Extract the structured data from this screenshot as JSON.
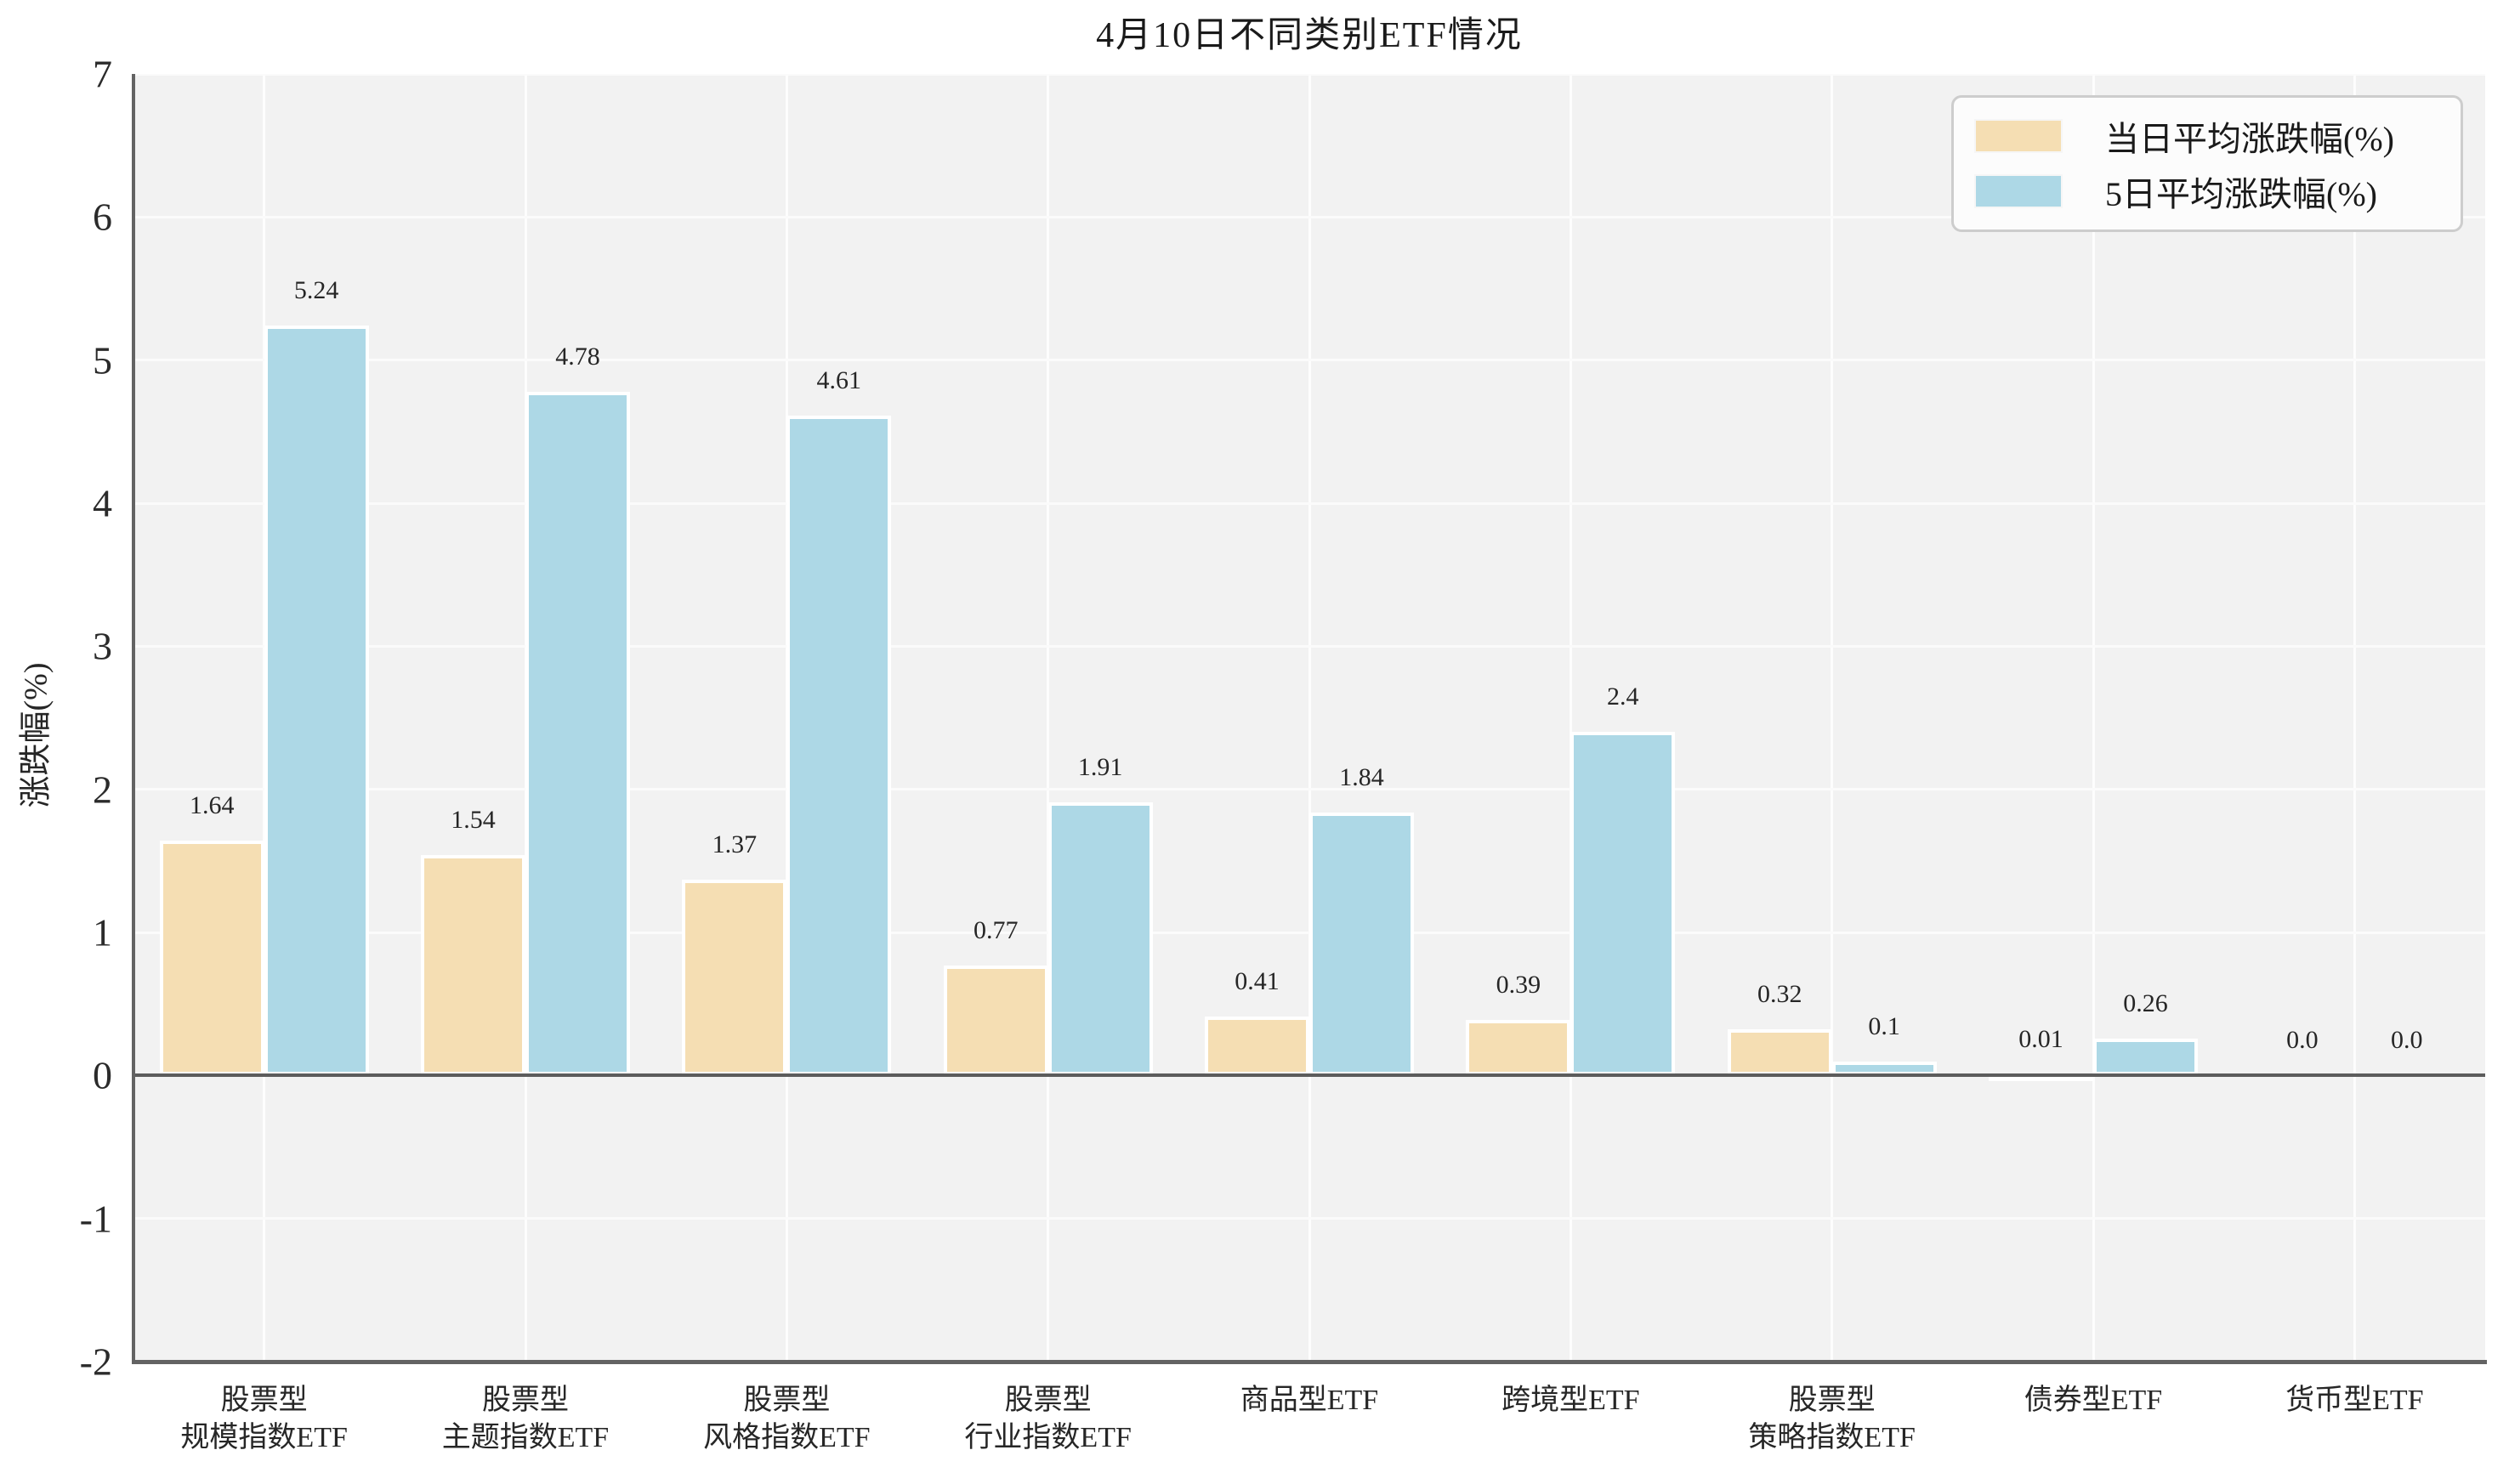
{
  "chart_data": {
    "type": "bar",
    "title": "4月10日不同类别ETF情况",
    "ylabel": "涨跌幅(%)",
    "xlabel": "",
    "ylim": [
      -2,
      7
    ],
    "yticks": [
      -2,
      -1,
      0,
      1,
      2,
      3,
      4,
      5,
      6,
      7
    ],
    "grid": true,
    "legend_position": "upper right",
    "categories": [
      [
        "股票型",
        "规模指数ETF"
      ],
      [
        "股票型",
        "主题指数ETF"
      ],
      [
        "股票型",
        "风格指数ETF"
      ],
      [
        "股票型",
        "行业指数ETF"
      ],
      [
        "商品型ETF"
      ],
      [
        "跨境型ETF"
      ],
      [
        "股票型",
        "策略指数ETF"
      ],
      [
        "债券型ETF"
      ],
      [
        "货币型ETF"
      ]
    ],
    "series": [
      {
        "name": "当日平均涨跌幅(%)",
        "color": "#f5deb3",
        "values": [
          1.64,
          1.54,
          1.37,
          0.77,
          0.41,
          0.39,
          0.32,
          0.01,
          0.0
        ],
        "value_labels": [
          "1.64",
          "1.54",
          "1.37",
          "0.77",
          "0.41",
          "0.39",
          "0.32",
          "0.01",
          "0.0"
        ]
      },
      {
        "name": "5日平均涨跌幅(%)",
        "color": "#add8e6",
        "values": [
          5.24,
          4.78,
          4.61,
          1.91,
          1.84,
          2.4,
          0.1,
          0.26,
          0.0
        ],
        "value_labels": [
          "5.24",
          "4.78",
          "4.61",
          "1.91",
          "1.84",
          "2.4",
          "0.1",
          "0.26",
          "0.0"
        ]
      }
    ],
    "style": {
      "figure_bg": "#ffffff",
      "plot_bg": "#f2f2f2",
      "grid_color": "#fbfbfb",
      "spine_color": "#636363",
      "bar_edge_color": "#ffffff",
      "text_color": "#262626"
    }
  }
}
